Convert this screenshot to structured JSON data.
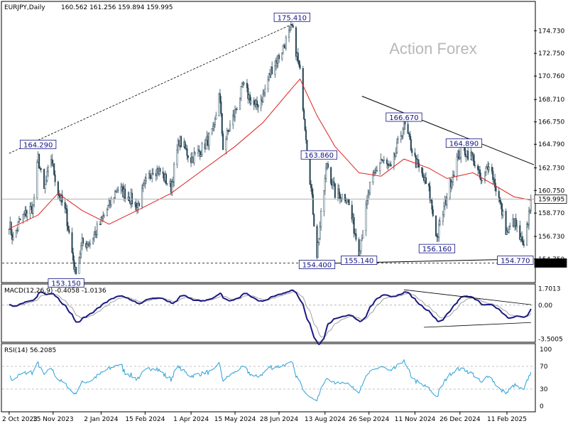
{
  "main": {
    "symbol_label": "EURJPY,Daily",
    "ohlc_label": "160.562 161.256 159.894 159.995",
    "watermark": "Action Forex",
    "price_ticks": [
      "174.730",
      "172.750",
      "170.760",
      "168.710",
      "166.750",
      "164.790",
      "162.730",
      "160.750",
      "158.770",
      "156.730",
      "154.750"
    ],
    "current_price": "159.995",
    "support_price": "154.400",
    "annotations": [
      {
        "text": "175.410",
        "x": "2024-07-11",
        "y": 175.41
      },
      {
        "text": "164.290",
        "x": "2023-10-31",
        "y": 164.29
      },
      {
        "text": "153.150",
        "x": "2023-11-28",
        "y": 153.15
      },
      {
        "text": "163.860",
        "x": "2024-08-07",
        "y": 163.86
      },
      {
        "text": "154.400",
        "x": "2024-08-05",
        "y": 154.4
      },
      {
        "text": "155.140",
        "x": "2024-09-16",
        "y": 155.14
      },
      {
        "text": "166.670",
        "x": "2024-10-31",
        "y": 166.67
      },
      {
        "text": "164.890",
        "x": "2024-12-30",
        "y": 164.89
      },
      {
        "text": "156.160",
        "x": "2024-12-03",
        "y": 156.16
      },
      {
        "text": "154.770",
        "x": "2025-02-28",
        "y": 154.77
      }
    ]
  },
  "macd": {
    "label": "MACD(12,26,9) -0.4058 -1.0136",
    "ticks": [
      "1.7013",
      "0.00",
      "-3.5005"
    ]
  },
  "rsi": {
    "label": "RSI(14) 56.2085",
    "ticks": [
      "100",
      "70",
      "30",
      "0"
    ]
  },
  "x_axis": {
    "labels": [
      "2 Oct 2023",
      "15 Nov 2023",
      "2 Jan 2024",
      "15 Feb 2024",
      "1 Apr 2024",
      "15 May 2024",
      "28 Jun 2024",
      "13 Aug 2024",
      "26 Sep 2024",
      "11 Nov 2024",
      "26 Dec 2024",
      "11 Feb 2025"
    ]
  },
  "chart_data": {
    "type": "candlestick",
    "symbol": "EURJPY",
    "timeframe": "Daily",
    "ylim": [
      153.0,
      176.3
    ],
    "series": [
      {
        "name": "EURJPY",
        "points": [
          {
            "x": "2023-10-02",
            "y": 157.9
          },
          {
            "x": "2023-10-06",
            "y": 156.4
          },
          {
            "x": "2023-10-12",
            "y": 158.0
          },
          {
            "x": "2023-10-20",
            "y": 158.9
          },
          {
            "x": "2023-10-26",
            "y": 159.3
          },
          {
            "x": "2023-10-31",
            "y": 163.6
          },
          {
            "x": "2023-11-06",
            "y": 160.7
          },
          {
            "x": "2023-11-13",
            "y": 163.6
          },
          {
            "x": "2023-11-20",
            "y": 160.6
          },
          {
            "x": "2023-11-28",
            "y": 158.7
          },
          {
            "x": "2023-12-07",
            "y": 153.6
          },
          {
            "x": "2023-12-14",
            "y": 156.1
          },
          {
            "x": "2023-12-22",
            "y": 156.2
          },
          {
            "x": "2024-01-02",
            "y": 158.0
          },
          {
            "x": "2024-01-10",
            "y": 159.4
          },
          {
            "x": "2024-01-18",
            "y": 161.0
          },
          {
            "x": "2024-01-30",
            "y": 160.2
          },
          {
            "x": "2024-02-07",
            "y": 159.3
          },
          {
            "x": "2024-02-15",
            "y": 161.2
          },
          {
            "x": "2024-02-23",
            "y": 162.7
          },
          {
            "x": "2024-03-01",
            "y": 162.4
          },
          {
            "x": "2024-03-12",
            "y": 161.0
          },
          {
            "x": "2024-03-20",
            "y": 165.2
          },
          {
            "x": "2024-04-01",
            "y": 163.5
          },
          {
            "x": "2024-04-12",
            "y": 164.4
          },
          {
            "x": "2024-04-24",
            "y": 166.0
          },
          {
            "x": "2024-04-29",
            "y": 169.5
          },
          {
            "x": "2024-05-03",
            "y": 164.6
          },
          {
            "x": "2024-05-15",
            "y": 167.6
          },
          {
            "x": "2024-05-23",
            "y": 169.9
          },
          {
            "x": "2024-06-04",
            "y": 168.0
          },
          {
            "x": "2024-06-12",
            "y": 169.0
          },
          {
            "x": "2024-06-20",
            "y": 171.3
          },
          {
            "x": "2024-06-28",
            "y": 172.5
          },
          {
            "x": "2024-07-11",
            "y": 175.0
          },
          {
            "x": "2024-07-19",
            "y": 171.0
          },
          {
            "x": "2024-07-25",
            "y": 165.6
          },
          {
            "x": "2024-08-05",
            "y": 155.2
          },
          {
            "x": "2024-08-15",
            "y": 163.2
          },
          {
            "x": "2024-08-23",
            "y": 160.5
          },
          {
            "x": "2024-09-04",
            "y": 160.2
          },
          {
            "x": "2024-09-16",
            "y": 155.5
          },
          {
            "x": "2024-09-27",
            "y": 161.1
          },
          {
            "x": "2024-10-08",
            "y": 163.5
          },
          {
            "x": "2024-10-18",
            "y": 162.5
          },
          {
            "x": "2024-10-31",
            "y": 166.6
          },
          {
            "x": "2024-11-12",
            "y": 163.2
          },
          {
            "x": "2024-11-25",
            "y": 160.7
          },
          {
            "x": "2024-12-03",
            "y": 156.6
          },
          {
            "x": "2024-12-13",
            "y": 160.3
          },
          {
            "x": "2024-12-24",
            "y": 163.8
          },
          {
            "x": "2024-12-30",
            "y": 164.3
          },
          {
            "x": "2025-01-08",
            "y": 163.6
          },
          {
            "x": "2025-01-17",
            "y": 161.3
          },
          {
            "x": "2025-01-24",
            "y": 163.3
          },
          {
            "x": "2025-02-03",
            "y": 160.0
          },
          {
            "x": "2025-02-11",
            "y": 157.0
          },
          {
            "x": "2025-02-18",
            "y": 158.1
          },
          {
            "x": "2025-02-28",
            "y": 155.5
          },
          {
            "x": "2025-03-07",
            "y": 159.995
          }
        ]
      },
      {
        "name": "Moving Average",
        "points": [
          {
            "x": "2023-10-02",
            "y": 157.4
          },
          {
            "x": "2023-10-31",
            "y": 158.6
          },
          {
            "x": "2023-11-20",
            "y": 160.5
          },
          {
            "x": "2023-12-14",
            "y": 159.0
          },
          {
            "x": "2024-01-10",
            "y": 157.8
          },
          {
            "x": "2024-02-07",
            "y": 159.0
          },
          {
            "x": "2024-03-12",
            "y": 160.5
          },
          {
            "x": "2024-04-12",
            "y": 162.5
          },
          {
            "x": "2024-05-15",
            "y": 164.6
          },
          {
            "x": "2024-06-12",
            "y": 166.7
          },
          {
            "x": "2024-07-11",
            "y": 169.7
          },
          {
            "x": "2024-07-19",
            "y": 170.5
          },
          {
            "x": "2024-08-05",
            "y": 167.3
          },
          {
            "x": "2024-08-23",
            "y": 164.6
          },
          {
            "x": "2024-09-16",
            "y": 162.3
          },
          {
            "x": "2024-10-08",
            "y": 162.0
          },
          {
            "x": "2024-10-31",
            "y": 163.5
          },
          {
            "x": "2024-11-25",
            "y": 162.7
          },
          {
            "x": "2024-12-13",
            "y": 161.8
          },
          {
            "x": "2025-01-08",
            "y": 162.3
          },
          {
            "x": "2025-01-24",
            "y": 161.5
          },
          {
            "x": "2025-02-18",
            "y": 160.2
          },
          {
            "x": "2025-03-07",
            "y": 159.9
          }
        ]
      }
    ],
    "macd": {
      "label": "MACD(12,26,9)",
      "main": -0.4058,
      "signal": -1.0136
    },
    "rsi": {
      "label": "RSI(14)",
      "value": 56.2085,
      "levels": [
        70,
        30
      ]
    }
  }
}
